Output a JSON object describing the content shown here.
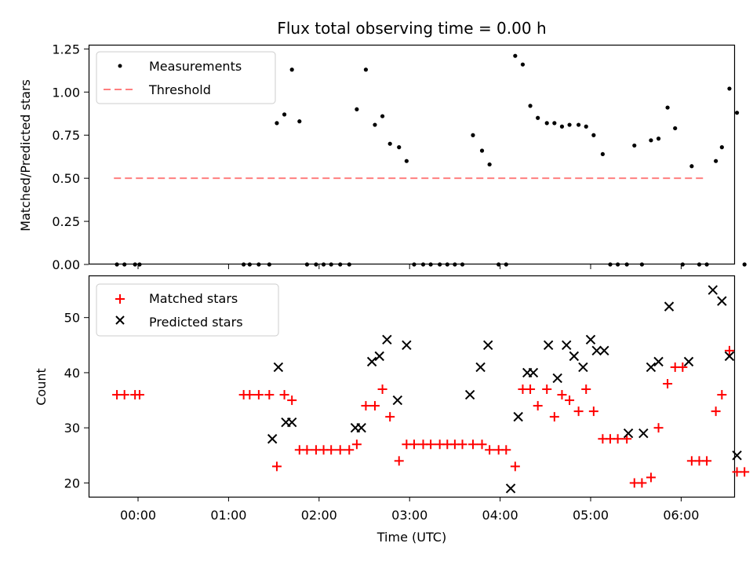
{
  "chart_data": [
    {
      "type": "scatter",
      "title": "Flux total observing time = 0.00 h",
      "xlabel": "",
      "ylabel": "Matched/Predicted stars",
      "ylim": [
        0.0,
        1.27
      ],
      "yticks": [
        "0.00",
        "0.25",
        "0.50",
        "0.75",
        "1.00",
        "1.25"
      ],
      "legend": {
        "placement": "top-left",
        "entries": [
          "Measurements",
          "Threshold"
        ]
      },
      "threshold": {
        "name": "Threshold",
        "value": 0.5,
        "x_range": [
          "23:44",
          "06:17"
        ],
        "color": "#ff7f7f"
      },
      "series": [
        {
          "name": "Measurements",
          "color": "#000000",
          "points": [
            [
              "23:46",
              0.0
            ],
            [
              "23:51",
              0.0
            ],
            [
              "23:58",
              0.0
            ],
            [
              "00:01",
              0.0
            ],
            [
              "01:10",
              0.0
            ],
            [
              "01:14",
              0.0
            ],
            [
              "01:20",
              0.0
            ],
            [
              "01:27",
              0.0
            ],
            [
              "01:32",
              0.82
            ],
            [
              "01:37",
              0.87
            ],
            [
              "01:42",
              1.13
            ],
            [
              "01:47",
              0.83
            ],
            [
              "01:52",
              0.0
            ],
            [
              "01:58",
              0.0
            ],
            [
              "02:03",
              0.0
            ],
            [
              "02:08",
              0.0
            ],
            [
              "02:14",
              0.0
            ],
            [
              "02:20",
              0.0
            ],
            [
              "02:25",
              0.9
            ],
            [
              "02:31",
              1.13
            ],
            [
              "02:37",
              0.81
            ],
            [
              "02:42",
              0.86
            ],
            [
              "02:47",
              0.7
            ],
            [
              "02:53",
              0.68
            ],
            [
              "02:58",
              0.6
            ],
            [
              "03:03",
              0.0
            ],
            [
              "03:09",
              0.0
            ],
            [
              "03:14",
              0.0
            ],
            [
              "03:20",
              0.0
            ],
            [
              "03:25",
              0.0
            ],
            [
              "03:30",
              0.0
            ],
            [
              "03:35",
              0.0
            ],
            [
              "03:42",
              0.75
            ],
            [
              "03:48",
              0.66
            ],
            [
              "03:53",
              0.58
            ],
            [
              "03:59",
              0.0
            ],
            [
              "04:04",
              0.0
            ],
            [
              "04:10",
              1.21
            ],
            [
              "04:15",
              1.16
            ],
            [
              "04:20",
              0.92
            ],
            [
              "04:25",
              0.85
            ],
            [
              "04:31",
              0.82
            ],
            [
              "04:36",
              0.82
            ],
            [
              "04:41",
              0.8
            ],
            [
              "04:46",
              0.81
            ],
            [
              "04:52",
              0.81
            ],
            [
              "04:57",
              0.8
            ],
            [
              "05:02",
              0.75
            ],
            [
              "05:08",
              0.64
            ],
            [
              "05:13",
              0.0
            ],
            [
              "05:18",
              0.0
            ],
            [
              "05:24",
              0.0
            ],
            [
              "05:29",
              0.69
            ],
            [
              "05:34",
              0.0
            ],
            [
              "05:40",
              0.72
            ],
            [
              "05:45",
              0.73
            ],
            [
              "05:51",
              0.91
            ],
            [
              "05:56",
              0.79
            ],
            [
              "06:01",
              0.0
            ],
            [
              "06:07",
              0.57
            ],
            [
              "06:12",
              0.0
            ],
            [
              "06:17",
              0.0
            ],
            [
              "06:23",
              0.6
            ],
            [
              "06:27",
              0.68
            ],
            [
              "06:32",
              1.02
            ],
            [
              "06:37",
              0.88
            ],
            [
              "06:42",
              0.0
            ]
          ]
        }
      ]
    },
    {
      "type": "scatter",
      "title": "",
      "xlabel": "Time (UTC)",
      "ylabel": "Count",
      "ylim": [
        17.5,
        57.5
      ],
      "yticks": [
        "20",
        "30",
        "40",
        "50"
      ],
      "xticks": [
        "00:00",
        "01:00",
        "02:00",
        "03:00",
        "04:00",
        "05:00",
        "06:00"
      ],
      "legend": {
        "placement": "top-left",
        "entries": [
          "Matched stars",
          "Predicted stars"
        ]
      },
      "series": [
        {
          "name": "Matched stars",
          "marker": "+",
          "color": "#ff0000",
          "points": [
            [
              "23:46",
              36
            ],
            [
              "23:51",
              36
            ],
            [
              "23:58",
              36
            ],
            [
              "00:01",
              36
            ],
            [
              "01:10",
              36
            ],
            [
              "01:14",
              36
            ],
            [
              "01:20",
              36
            ],
            [
              "01:27",
              36
            ],
            [
              "01:32",
              23
            ],
            [
              "01:37",
              36
            ],
            [
              "01:42",
              35
            ],
            [
              "01:47",
              26
            ],
            [
              "01:52",
              26
            ],
            [
              "01:58",
              26
            ],
            [
              "02:03",
              26
            ],
            [
              "02:08",
              26
            ],
            [
              "02:14",
              26
            ],
            [
              "02:20",
              26
            ],
            [
              "02:25",
              27
            ],
            [
              "02:31",
              34
            ],
            [
              "02:37",
              34
            ],
            [
              "02:42",
              37
            ],
            [
              "02:47",
              32
            ],
            [
              "02:53",
              24
            ],
            [
              "02:58",
              27
            ],
            [
              "03:03",
              27
            ],
            [
              "03:09",
              27
            ],
            [
              "03:14",
              27
            ],
            [
              "03:20",
              27
            ],
            [
              "03:25",
              27
            ],
            [
              "03:30",
              27
            ],
            [
              "03:35",
              27
            ],
            [
              "03:42",
              27
            ],
            [
              "03:48",
              27
            ],
            [
              "03:53",
              26
            ],
            [
              "03:59",
              26
            ],
            [
              "04:04",
              26
            ],
            [
              "04:10",
              23
            ],
            [
              "04:15",
              37
            ],
            [
              "04:20",
              37
            ],
            [
              "04:25",
              34
            ],
            [
              "04:31",
              37
            ],
            [
              "04:36",
              32
            ],
            [
              "04:41",
              36
            ],
            [
              "04:46",
              35
            ],
            [
              "04:52",
              33
            ],
            [
              "04:57",
              37
            ],
            [
              "05:02",
              33
            ],
            [
              "05:08",
              28
            ],
            [
              "05:13",
              28
            ],
            [
              "05:18",
              28
            ],
            [
              "05:24",
              28
            ],
            [
              "05:29",
              20
            ],
            [
              "05:34",
              20
            ],
            [
              "05:40",
              21
            ],
            [
              "05:45",
              30
            ],
            [
              "05:51",
              38
            ],
            [
              "05:56",
              41
            ],
            [
              "06:01",
              41
            ],
            [
              "06:07",
              24
            ],
            [
              "06:12",
              24
            ],
            [
              "06:17",
              24
            ],
            [
              "06:23",
              33
            ],
            [
              "06:27",
              36
            ],
            [
              "06:32",
              44
            ],
            [
              "06:37",
              22
            ],
            [
              "06:42",
              22
            ]
          ]
        },
        {
          "name": "Predicted stars",
          "marker": "x",
          "color": "#000000",
          "points": [
            [
              "01:29",
              28
            ],
            [
              "01:33",
              41
            ],
            [
              "01:38",
              31
            ],
            [
              "01:42",
              31
            ],
            [
              "02:24",
              30
            ],
            [
              "02:28",
              30
            ],
            [
              "02:35",
              42
            ],
            [
              "02:40",
              43
            ],
            [
              "02:45",
              46
            ],
            [
              "02:52",
              35
            ],
            [
              "02:58",
              45
            ],
            [
              "03:40",
              36
            ],
            [
              "03:47",
              41
            ],
            [
              "03:52",
              45
            ],
            [
              "04:07",
              19
            ],
            [
              "04:12",
              32
            ],
            [
              "04:18",
              40
            ],
            [
              "04:22",
              40
            ],
            [
              "04:32",
              45
            ],
            [
              "04:38",
              39
            ],
            [
              "04:44",
              45
            ],
            [
              "04:49",
              43
            ],
            [
              "04:55",
              41
            ],
            [
              "05:00",
              46
            ],
            [
              "05:04",
              44
            ],
            [
              "05:09",
              44
            ],
            [
              "05:25",
              29
            ],
            [
              "05:35",
              29
            ],
            [
              "05:40",
              41
            ],
            [
              "05:45",
              42
            ],
            [
              "05:52",
              52
            ],
            [
              "06:05",
              42
            ],
            [
              "06:21",
              55
            ],
            [
              "06:27",
              53
            ],
            [
              "06:32",
              43
            ],
            [
              "06:37",
              25
            ]
          ]
        }
      ]
    }
  ]
}
